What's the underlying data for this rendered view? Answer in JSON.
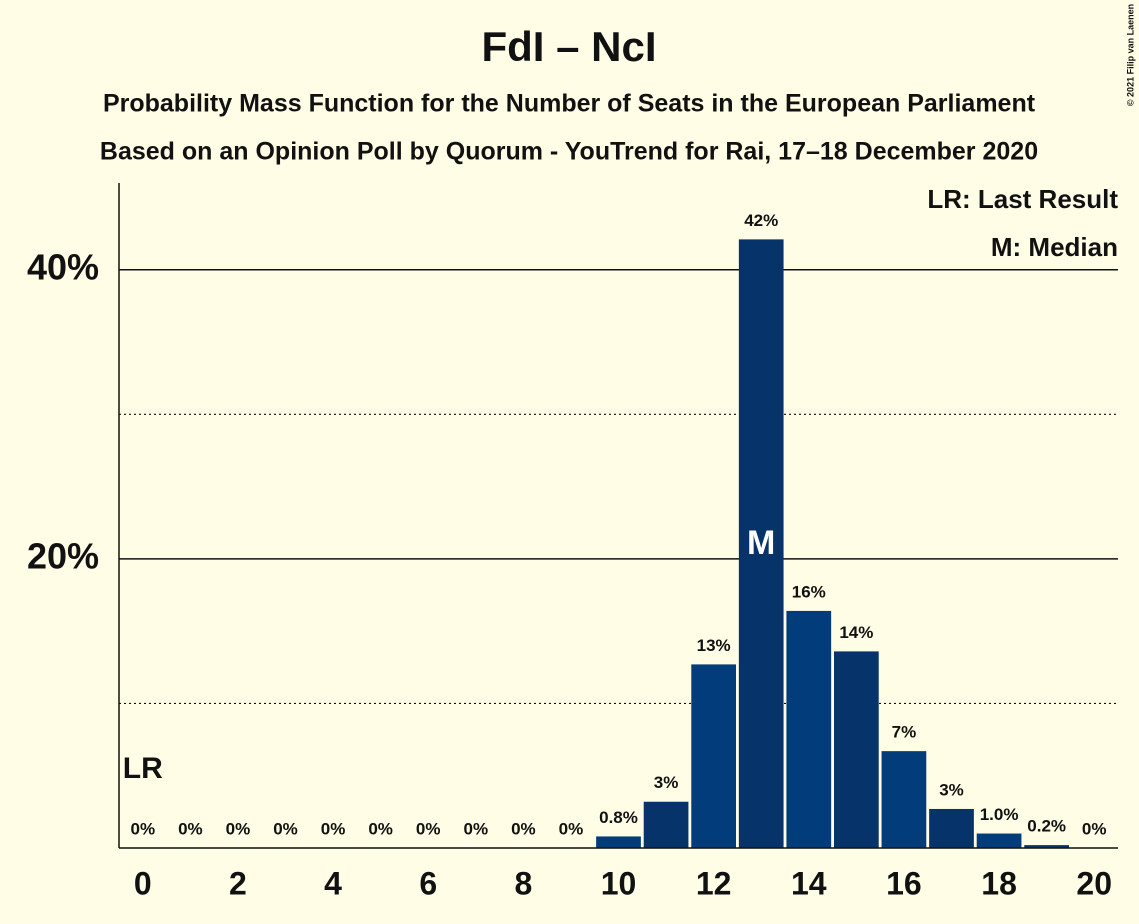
{
  "chart_data": {
    "type": "bar",
    "title": "FdI – NcI",
    "subtitle": [
      "Probability Mass Function for the Number of Seats in the European Parliament",
      "Based on an Opinion Poll by Quorum - YouTrend for Rai, 17–18 December 2020"
    ],
    "credit": "© 2021 Filip van Laenen",
    "x": [
      0,
      1,
      2,
      3,
      4,
      5,
      6,
      7,
      8,
      9,
      10,
      11,
      12,
      13,
      14,
      15,
      16,
      17,
      18,
      19,
      20
    ],
    "values": [
      0,
      0,
      0,
      0,
      0,
      0,
      0,
      0,
      0,
      0,
      0.8,
      3.2,
      12.7,
      42.1,
      16.4,
      13.6,
      6.7,
      2.7,
      1.0,
      0.2,
      0
    ],
    "value_labels": [
      "0%",
      "0%",
      "0%",
      "0%",
      "0%",
      "0%",
      "0%",
      "0%",
      "0%",
      "0%",
      "0.8%",
      "3%",
      "13%",
      "42%",
      "16%",
      "14%",
      "7%",
      "3%",
      "1.0%",
      "0.2%",
      "0%"
    ],
    "colors": [
      "#023c7b",
      "#06346a"
    ],
    "xlim": [
      -0.5,
      20.5
    ],
    "xticks": [
      0,
      2,
      4,
      6,
      8,
      10,
      12,
      14,
      16,
      18,
      20
    ],
    "ylim": [
      0,
      46
    ],
    "yticks": [
      {
        "value": 20,
        "label": "20%"
      },
      {
        "value": 40,
        "label": "40%"
      }
    ],
    "minor_yticks": [
      10,
      30
    ],
    "last_result": {
      "x": 0,
      "label": "LR"
    },
    "median": {
      "x": 13,
      "label": "M"
    },
    "legend": [
      "LR: Last Result",
      "M: Median"
    ],
    "legend_position": "top-right"
  }
}
